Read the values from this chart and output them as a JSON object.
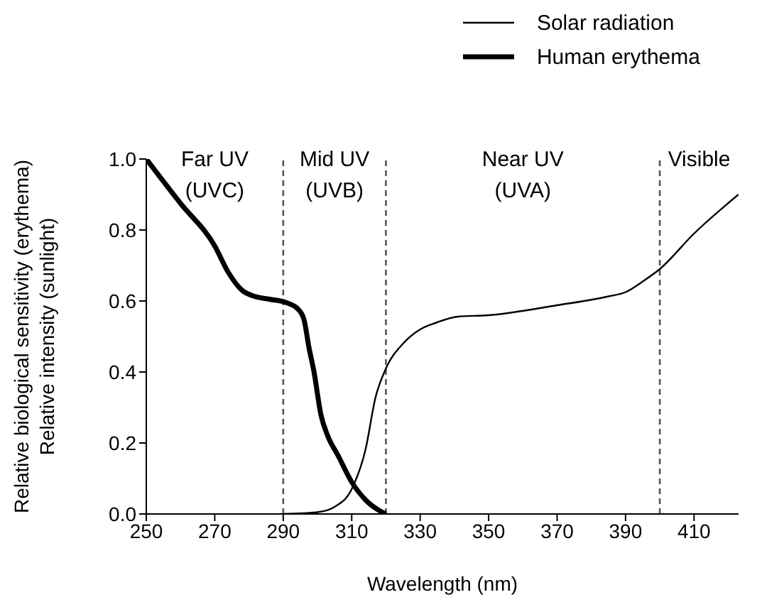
{
  "chart_data": {
    "type": "line",
    "xlabel": "Wavelength (nm)",
    "ylabel": "Relative biological sensitivity (erythema)\nRelative intensity (sunlight)",
    "xlim": [
      250,
      423
    ],
    "xticks": [
      250,
      270,
      290,
      310,
      330,
      350,
      370,
      390,
      410
    ],
    "ylim": [
      0,
      1
    ],
    "yticks": [
      {
        "value": 0,
        "label": "0.0"
      },
      {
        "value": 0.2,
        "label": "0.2"
      },
      {
        "value": 0.4,
        "label": "0.4"
      },
      {
        "value": 0.6,
        "label": "0.6"
      },
      {
        "value": 0.8,
        "label": "0.8"
      },
      {
        "value": 1,
        "label": "1.0"
      }
    ],
    "grid": false,
    "legend": "top right",
    "series": [
      {
        "name": "Solar radiation",
        "color": "#000000",
        "x": [
          290,
          300,
          305,
          310,
          314,
          317,
          320,
          325,
          330,
          335,
          341,
          350,
          370,
          385,
          390,
          395,
          400,
          410,
          423
        ],
        "values": [
          0,
          0.005,
          0.02,
          0.07,
          0.18,
          0.33,
          0.41,
          0.48,
          0.52,
          0.54,
          0.556,
          0.56,
          0.588,
          0.613,
          0.625,
          0.655,
          0.69,
          0.79,
          0.9
        ]
      },
      {
        "name": "Human erythema",
        "color": "#000000",
        "x": [
          250,
          260,
          270,
          274,
          278,
          281,
          286,
          291,
          294,
          296,
          297.5,
          299,
          301,
          303,
          306,
          310,
          314,
          318,
          320
        ],
        "values": [
          1,
          0.875,
          0.755,
          0.68,
          0.63,
          0.615,
          0.605,
          0.595,
          0.58,
          0.55,
          0.47,
          0.4,
          0.28,
          0.22,
          0.165,
          0.09,
          0.04,
          0.01,
          0
        ]
      }
    ],
    "ref_lines": [
      {
        "axis": "x",
        "value": 290,
        "color": "#555555",
        "line_style": "dashed"
      },
      {
        "axis": "x",
        "value": 320,
        "color": "#555555",
        "line_style": "dashed"
      },
      {
        "axis": "x",
        "value": 400,
        "color": "#555555",
        "line_style": "dashed"
      }
    ],
    "annotations": [
      "Far UV\n(UVC)",
      "Mid UV\n(UVB)",
      "Near UV\n(UVA)",
      "Visible"
    ]
  }
}
